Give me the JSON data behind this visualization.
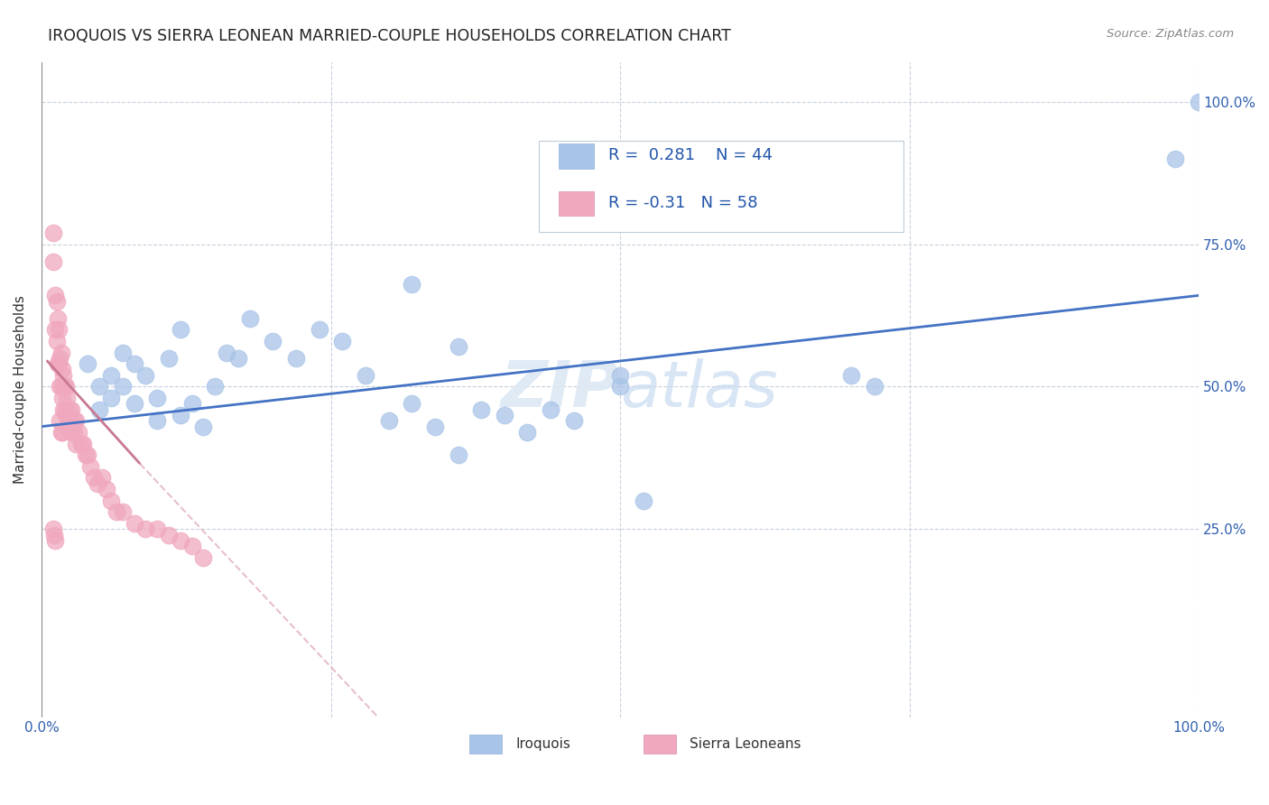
{
  "title": "IROQUOIS VS SIERRA LEONEAN MARRIED-COUPLE HOUSEHOLDS CORRELATION CHART",
  "source": "Source: ZipAtlas.com",
  "ylabel": "Married-couple Households",
  "legend_label1": "Iroquois",
  "legend_label2": "Sierra Leoneans",
  "R1": 0.281,
  "N1": 44,
  "R2": -0.31,
  "N2": 58,
  "color_blue": "#a8c4e8",
  "color_pink": "#f0a8be",
  "trendline_blue": "#4472c4",
  "trendline_pink_solid": "#c87890",
  "trendline_pink_dash": "#e0b0c0",
  "background_color": "#ffffff",
  "iroquois_x": [
    0.04,
    0.05,
    0.05,
    0.06,
    0.06,
    0.07,
    0.07,
    0.08,
    0.08,
    0.09,
    0.1,
    0.1,
    0.11,
    0.12,
    0.12,
    0.13,
    0.14,
    0.15,
    0.16,
    0.17,
    0.18,
    0.2,
    0.22,
    0.24,
    0.26,
    0.28,
    0.3,
    0.32,
    0.34,
    0.36,
    0.38,
    0.4,
    0.42,
    0.44,
    0.46,
    0.5,
    0.5,
    0.52,
    0.7,
    0.72,
    0.32,
    0.36,
    0.98,
    1.0
  ],
  "iroquois_y": [
    0.54,
    0.5,
    0.46,
    0.52,
    0.48,
    0.56,
    0.5,
    0.54,
    0.47,
    0.52,
    0.44,
    0.48,
    0.55,
    0.6,
    0.45,
    0.47,
    0.43,
    0.5,
    0.56,
    0.55,
    0.62,
    0.58,
    0.55,
    0.6,
    0.58,
    0.52,
    0.44,
    0.47,
    0.43,
    0.38,
    0.46,
    0.45,
    0.42,
    0.46,
    0.44,
    0.5,
    0.52,
    0.3,
    0.52,
    0.5,
    0.68,
    0.57,
    0.9,
    1.0
  ],
  "sierra_x": [
    0.01,
    0.01,
    0.012,
    0.012,
    0.013,
    0.013,
    0.014,
    0.014,
    0.015,
    0.015,
    0.016,
    0.016,
    0.017,
    0.017,
    0.018,
    0.018,
    0.019,
    0.019,
    0.02,
    0.02,
    0.021,
    0.021,
    0.022,
    0.022,
    0.024,
    0.024,
    0.026,
    0.026,
    0.028,
    0.028,
    0.03,
    0.03,
    0.032,
    0.034,
    0.036,
    0.038,
    0.04,
    0.042,
    0.045,
    0.048,
    0.052,
    0.056,
    0.06,
    0.065,
    0.07,
    0.08,
    0.09,
    0.1,
    0.11,
    0.12,
    0.13,
    0.14,
    0.01,
    0.011,
    0.012,
    0.016,
    0.017,
    0.018
  ],
  "sierra_y": [
    0.77,
    0.72,
    0.66,
    0.6,
    0.65,
    0.58,
    0.62,
    0.54,
    0.6,
    0.54,
    0.55,
    0.5,
    0.56,
    0.5,
    0.53,
    0.48,
    0.52,
    0.46,
    0.5,
    0.46,
    0.5,
    0.45,
    0.48,
    0.43,
    0.46,
    0.44,
    0.46,
    0.42,
    0.44,
    0.42,
    0.44,
    0.4,
    0.42,
    0.4,
    0.4,
    0.38,
    0.38,
    0.36,
    0.34,
    0.33,
    0.34,
    0.32,
    0.3,
    0.28,
    0.28,
    0.26,
    0.25,
    0.25,
    0.24,
    0.23,
    0.22,
    0.2,
    0.25,
    0.24,
    0.23,
    0.44,
    0.42,
    0.42
  ],
  "trendline_iq_x0": 0.0,
  "trendline_iq_x1": 1.0,
  "trendline_iq_y0": 0.43,
  "trendline_iq_y1": 0.66,
  "trendline_sl_x0_solid": 0.005,
  "trendline_sl_x1_solid": 0.085,
  "trendline_sl_y0_solid": 0.545,
  "trendline_sl_y1_solid": 0.365,
  "trendline_sl_x0_dash": 0.085,
  "trendline_sl_x1_dash": 0.3,
  "trendline_sl_y0_dash": 0.365,
  "trendline_sl_y1_dash": -0.1,
  "xlim": [
    0.0,
    1.0
  ],
  "ylim": [
    -0.08,
    1.07
  ]
}
